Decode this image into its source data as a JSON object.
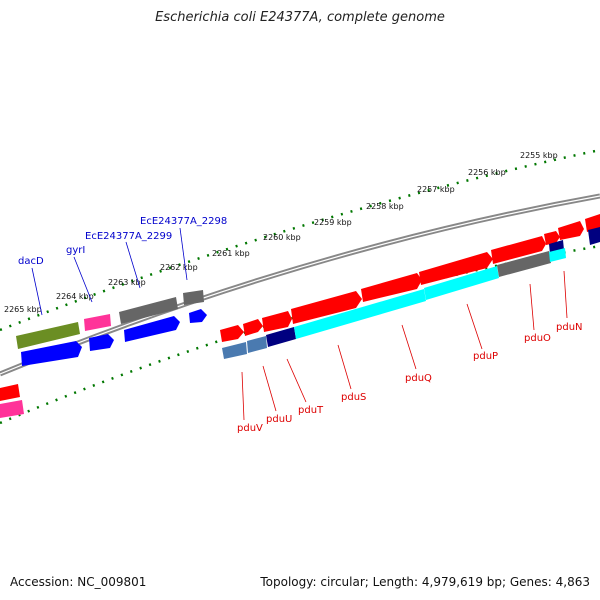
{
  "title": "Escherichia coli E24377A, complete genome",
  "footer": {
    "accession": "Accession: NC_009801",
    "stats": "Topology: circular; Length: 4,979,619 bp; Genes: 4,863"
  },
  "scale_labels": [
    "2255 kbp",
    "2256 kbp",
    "2257 kbp",
    "2258 kbp",
    "2259 kbp",
    "2260 kbp",
    "2261 kbp",
    "2262 kbp",
    "2263 kbp",
    "2264 kbp",
    "2265 kbp"
  ],
  "gene_labels_top": [
    "dacD",
    "gyrI",
    "EcE24377A_2299",
    "EcE24377A_2298"
  ],
  "gene_labels_bottom": [
    "pduV",
    "pduU",
    "pduT",
    "pduS",
    "pduQ",
    "pduP",
    "pduO",
    "pduN"
  ],
  "colors": {
    "forward_cds": "#ff0000",
    "reverse_cds": "#0000ff",
    "pseudo": "#6b8e23",
    "pink": "#ff3399",
    "grey": "#666666",
    "cyan": "#00ffff",
    "navy": "#000080",
    "steel": "#4a7ab0",
    "tick_green": "#007700",
    "backbone": "#888888"
  }
}
